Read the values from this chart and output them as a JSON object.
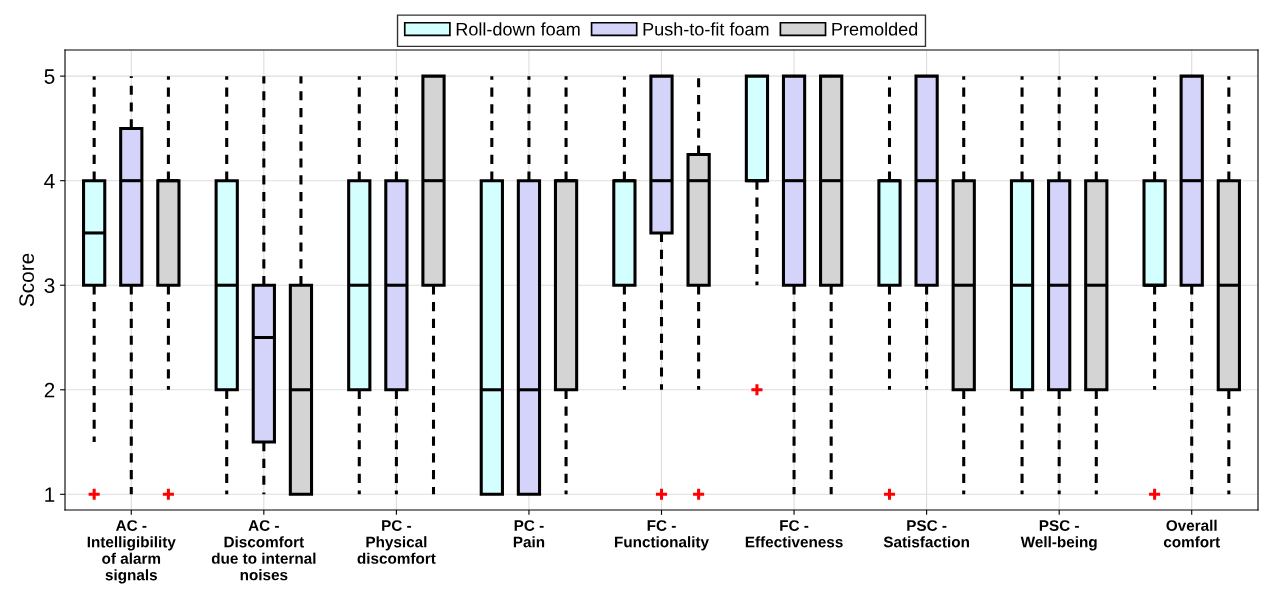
{
  "chart_data": {
    "type": "box",
    "ylabel": "Score",
    "categories": [
      "AC -\nIntelligibility\nof alarm\nsignals",
      "AC -\nDiscomfort\ndue to internal\nnoises",
      "PC -\nPhysical\ndiscomfort",
      "PC -\nPain",
      "FC -\nFunctionality",
      "FC -\nEffectiveness",
      "PSC -\nSatisfaction",
      "PSC -\nWell-being",
      "Overall\ncomfort"
    ],
    "ylim": [
      0.85,
      5.25
    ],
    "yticks": [
      1,
      2,
      3,
      4,
      5
    ],
    "grid": true,
    "legend": "top",
    "series": [
      {
        "name": "Roll-down foam",
        "color": "#d4ffff",
        "boxes": [
          {
            "low": 1.5,
            "q1": 3,
            "median": 3.5,
            "q3": 4,
            "high": 5,
            "outliers": [
              1
            ]
          },
          {
            "low": 1,
            "q1": 2,
            "median": 3,
            "q3": 4,
            "high": 5
          },
          {
            "low": 1,
            "q1": 2,
            "median": 3,
            "q3": 4,
            "high": 5
          },
          {
            "low": 1,
            "q1": 1,
            "median": 2,
            "q3": 4,
            "high": 5
          },
          {
            "low": 2,
            "q1": 3,
            "median": 4,
            "q3": 4,
            "high": 5
          },
          {
            "low": 3,
            "q1": 4,
            "median": 4,
            "q3": 5,
            "high": 5,
            "outliers": [
              2
            ]
          },
          {
            "low": 2,
            "q1": 3,
            "median": 4,
            "q3": 4,
            "high": 5,
            "outliers": [
              1
            ]
          },
          {
            "low": 1,
            "q1": 2,
            "median": 3,
            "q3": 4,
            "high": 5
          },
          {
            "low": 2,
            "q1": 3,
            "median": 3,
            "q3": 4,
            "high": 5,
            "outliers": [
              1
            ]
          }
        ]
      },
      {
        "name": "Push-to-fit foam",
        "color": "#d4d4fa",
        "boxes": [
          {
            "low": 1,
            "q1": 3,
            "median": 4,
            "q3": 4.5,
            "high": 5
          },
          {
            "low": 1,
            "q1": 1.5,
            "median": 2.5,
            "q3": 3,
            "high": 5
          },
          {
            "low": 1,
            "q1": 2,
            "median": 3,
            "q3": 4,
            "high": 5
          },
          {
            "low": 1,
            "q1": 1,
            "median": 2,
            "q3": 4,
            "high": 5
          },
          {
            "low": 2,
            "q1": 3.5,
            "median": 4,
            "q3": 5,
            "high": 5,
            "outliers": [
              1
            ]
          },
          {
            "low": 1,
            "q1": 3,
            "median": 4,
            "q3": 5,
            "high": 5
          },
          {
            "low": 2,
            "q1": 3,
            "median": 4,
            "q3": 5,
            "high": 5
          },
          {
            "low": 1,
            "q1": 2,
            "median": 3,
            "q3": 4,
            "high": 5
          },
          {
            "low": 1,
            "q1": 3,
            "median": 4,
            "q3": 5,
            "high": 5
          }
        ]
      },
      {
        "name": "Premolded",
        "color": "#d4d4d4",
        "boxes": [
          {
            "low": 2,
            "q1": 3,
            "median": 4,
            "q3": 4,
            "high": 5,
            "outliers": [
              1
            ]
          },
          {
            "low": 1,
            "q1": 1,
            "median": 2,
            "q3": 3,
            "high": 5
          },
          {
            "low": 1,
            "q1": 3,
            "median": 4,
            "q3": 5,
            "high": 5
          },
          {
            "low": 1,
            "q1": 2,
            "median": 4,
            "q3": 4,
            "high": 5
          },
          {
            "low": 2,
            "q1": 3,
            "median": 4,
            "q3": 4.25,
            "high": 5,
            "outliers": [
              1
            ]
          },
          {
            "low": 1,
            "q1": 3,
            "median": 4,
            "q3": 5,
            "high": 5
          },
          {
            "low": 1,
            "q1": 2,
            "median": 3,
            "q3": 4,
            "high": 5
          },
          {
            "low": 1,
            "q1": 2,
            "median": 3,
            "q3": 4,
            "high": 5
          },
          {
            "low": 1,
            "q1": 2,
            "median": 3,
            "q3": 4,
            "high": 5
          }
        ]
      }
    ]
  }
}
